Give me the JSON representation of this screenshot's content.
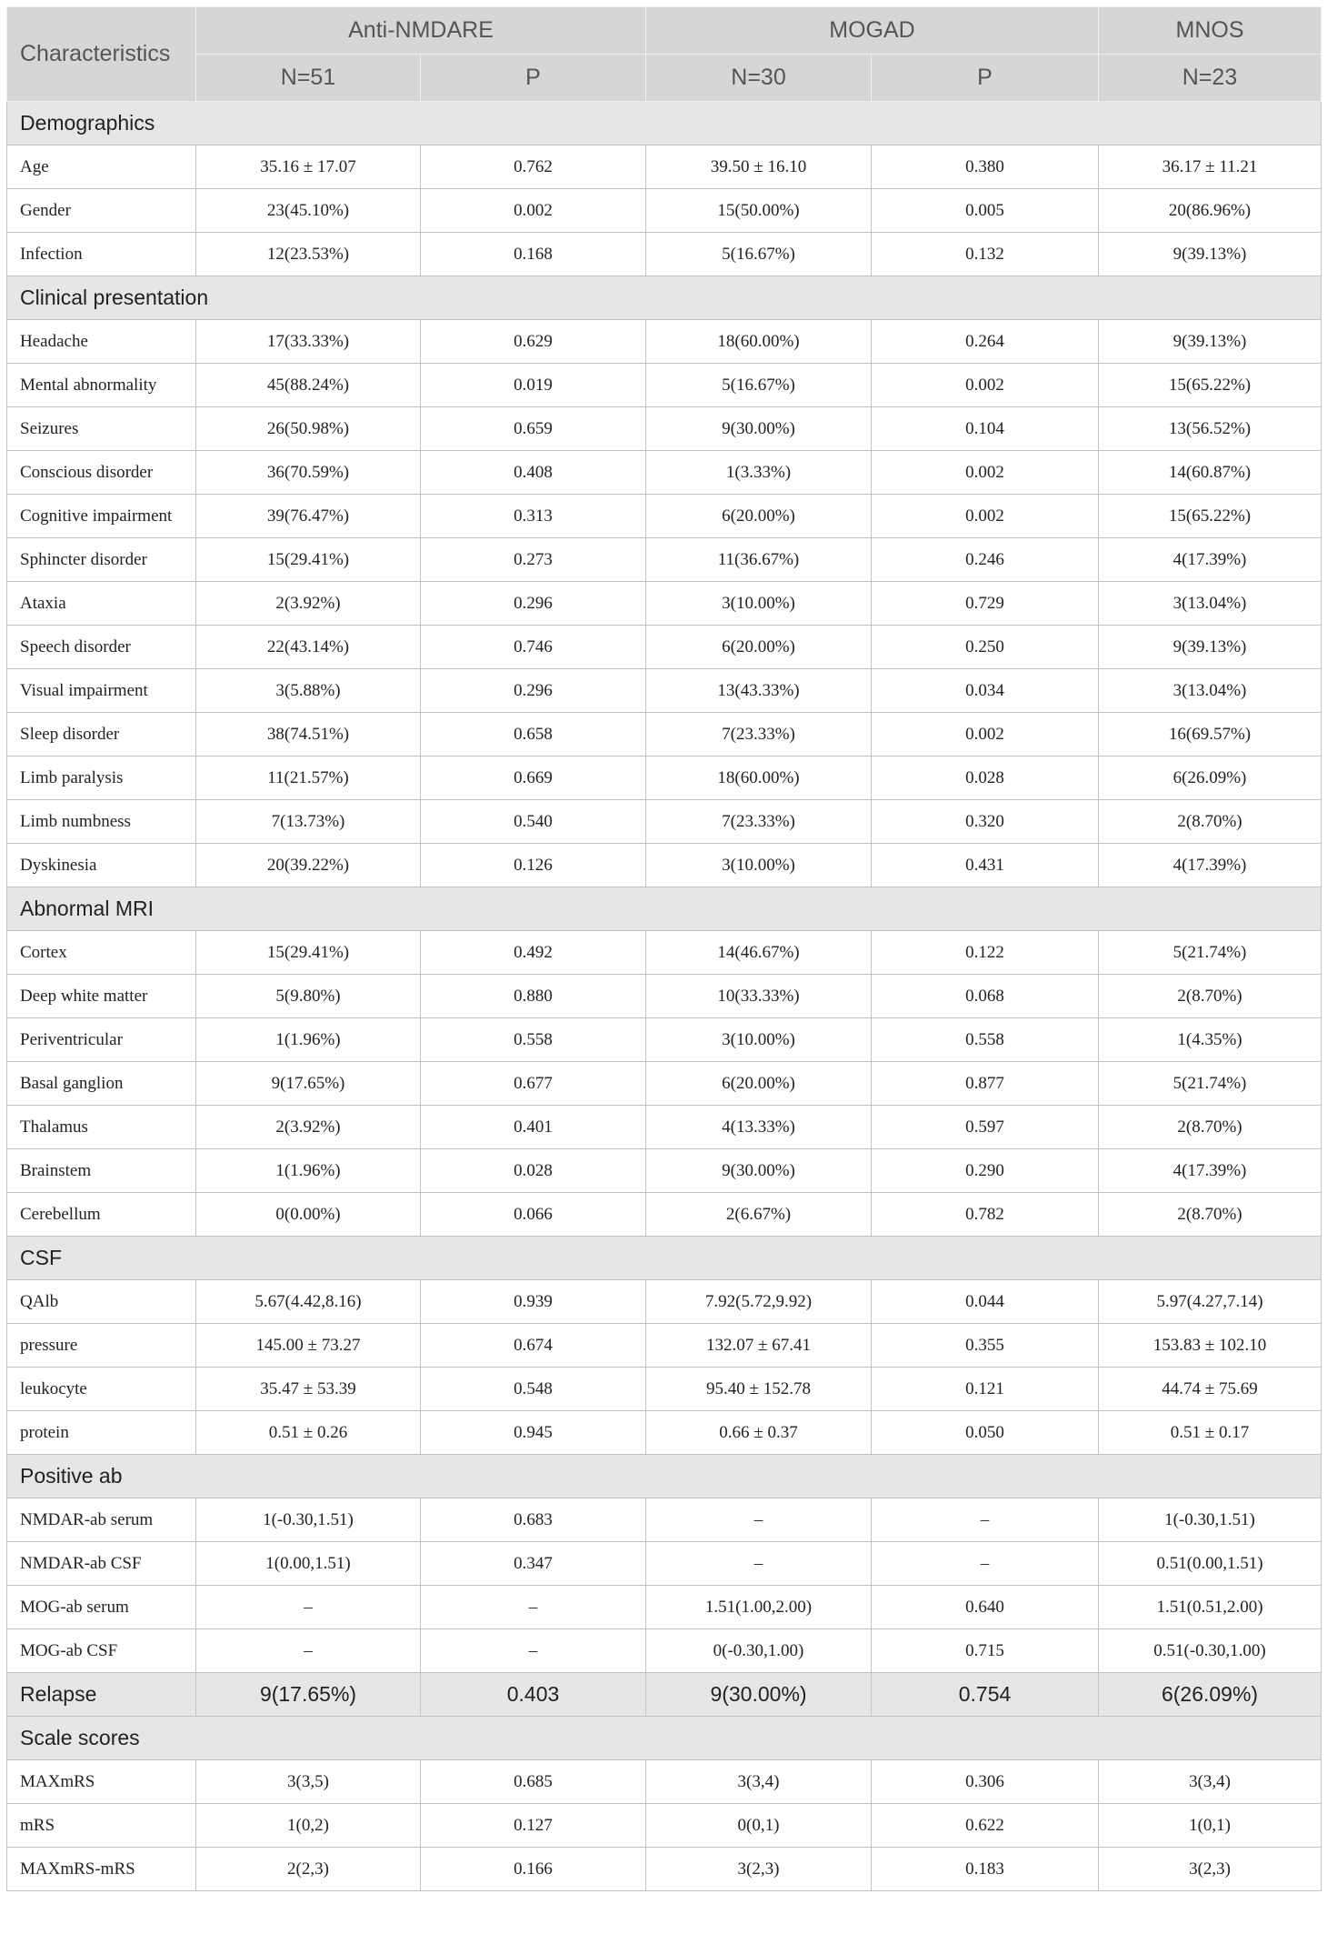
{
  "header": {
    "characteristics": "Characteristics",
    "groups": [
      "Anti-NMDARE",
      "MOGAD",
      "MNOS"
    ],
    "subheaders": [
      "N=51",
      "P",
      "N=30",
      "P",
      "N=23"
    ]
  },
  "sections": [
    {
      "title": "Demographics",
      "rows": [
        [
          "Age",
          "35.16 ± 17.07",
          "0.762",
          "39.50 ± 16.10",
          "0.380",
          "36.17 ± 11.21"
        ],
        [
          "Gender",
          "23(45.10%)",
          "0.002",
          "15(50.00%)",
          "0.005",
          "20(86.96%)"
        ],
        [
          "Infection",
          "12(23.53%)",
          "0.168",
          "5(16.67%)",
          "0.132",
          "9(39.13%)"
        ]
      ]
    },
    {
      "title": "Clinical presentation",
      "rows": [
        [
          "Headache",
          "17(33.33%)",
          "0.629",
          "18(60.00%)",
          "0.264",
          "9(39.13%)"
        ],
        [
          "Mental abnormality",
          "45(88.24%)",
          "0.019",
          "5(16.67%)",
          "0.002",
          "15(65.22%)"
        ],
        [
          "Seizures",
          "26(50.98%)",
          "0.659",
          "9(30.00%)",
          "0.104",
          "13(56.52%)"
        ],
        [
          "Conscious disorder",
          "36(70.59%)",
          "0.408",
          "1(3.33%)",
          "0.002",
          "14(60.87%)"
        ],
        [
          "Cognitive impairment",
          "39(76.47%)",
          "0.313",
          "6(20.00%)",
          "0.002",
          "15(65.22%)"
        ],
        [
          "Sphincter disorder",
          "15(29.41%)",
          "0.273",
          "11(36.67%)",
          "0.246",
          "4(17.39%)"
        ],
        [
          "Ataxia",
          "2(3.92%)",
          "0.296",
          "3(10.00%)",
          "0.729",
          "3(13.04%)"
        ],
        [
          "Speech disorder",
          "22(43.14%)",
          "0.746",
          "6(20.00%)",
          "0.250",
          "9(39.13%)"
        ],
        [
          "Visual impairment",
          "3(5.88%)",
          "0.296",
          "13(43.33%)",
          "0.034",
          "3(13.04%)"
        ],
        [
          "Sleep disorder",
          "38(74.51%)",
          "0.658",
          "7(23.33%)",
          "0.002",
          "16(69.57%)"
        ],
        [
          "Limb paralysis",
          "11(21.57%)",
          "0.669",
          "18(60.00%)",
          "0.028",
          "6(26.09%)"
        ],
        [
          "Limb numbness",
          "7(13.73%)",
          "0.540",
          "7(23.33%)",
          "0.320",
          "2(8.70%)"
        ],
        [
          "Dyskinesia",
          "20(39.22%)",
          "0.126",
          "3(10.00%)",
          "0.431",
          "4(17.39%)"
        ]
      ]
    },
    {
      "title": "Abnormal MRI",
      "rows": [
        [
          "Cortex",
          "15(29.41%)",
          "0.492",
          "14(46.67%)",
          "0.122",
          "5(21.74%)"
        ],
        [
          "Deep white matter",
          "5(9.80%)",
          "0.880",
          "10(33.33%)",
          "0.068",
          "2(8.70%)"
        ],
        [
          "Periventricular",
          "1(1.96%)",
          "0.558",
          "3(10.00%)",
          "0.558",
          "1(4.35%)"
        ],
        [
          "Basal ganglion",
          "9(17.65%)",
          "0.677",
          "6(20.00%)",
          "0.877",
          "5(21.74%)"
        ],
        [
          "Thalamus",
          "2(3.92%)",
          "0.401",
          "4(13.33%)",
          "0.597",
          "2(8.70%)"
        ],
        [
          "Brainstem",
          "1(1.96%)",
          "0.028",
          "9(30.00%)",
          "0.290",
          "4(17.39%)"
        ],
        [
          "Cerebellum",
          "0(0.00%)",
          "0.066",
          "2(6.67%)",
          "0.782",
          "2(8.70%)"
        ]
      ]
    },
    {
      "title": "CSF",
      "rows": [
        [
          "QAlb",
          "5.67(4.42,8.16)",
          "0.939",
          "7.92(5.72,9.92)",
          "0.044",
          "5.97(4.27,7.14)"
        ],
        [
          "pressure",
          "145.00 ± 73.27",
          "0.674",
          "132.07 ± 67.41",
          "0.355",
          "153.83 ± 102.10"
        ],
        [
          "leukocyte",
          "35.47 ± 53.39",
          "0.548",
          "95.40 ± 152.78",
          "0.121",
          "44.74 ± 75.69"
        ],
        [
          "protein",
          "0.51 ± 0.26",
          "0.945",
          "0.66 ± 0.37",
          "0.050",
          "0.51 ± 0.17"
        ]
      ]
    },
    {
      "title": "Positive ab",
      "rows": [
        [
          "NMDAR-ab serum",
          "1(-0.30,1.51)",
          "0.683",
          "–",
          "–",
          "1(-0.30,1.51)"
        ],
        [
          "NMDAR-ab CSF",
          "1(0.00,1.51)",
          "0.347",
          "–",
          "–",
          "0.51(0.00,1.51)"
        ],
        [
          "MOG-ab serum",
          "–",
          "–",
          "1.51(1.00,2.00)",
          "0.640",
          "1.51(0.51,2.00)"
        ],
        [
          "MOG-ab CSF",
          "–",
          "–",
          "0(-0.30,1.00)",
          "0.715",
          "0.51(-0.30,1.00)"
        ]
      ]
    },
    {
      "summary": [
        "Relapse",
        "9(17.65%)",
        "0.403",
        "9(30.00%)",
        "0.754",
        "6(26.09%)"
      ]
    },
    {
      "title": "Scale scores",
      "rows": [
        [
          "MAXmRS",
          "3(3,5)",
          "0.685",
          "3(3,4)",
          "0.306",
          "3(3,4)"
        ],
        [
          "mRS",
          "1(0,2)",
          "0.127",
          "0(0,1)",
          "0.622",
          "1(0,1)"
        ],
        [
          "MAXmRS-mRS",
          "2(2,3)",
          "0.166",
          "3(2,3)",
          "0.183",
          "3(2,3)"
        ]
      ]
    }
  ]
}
